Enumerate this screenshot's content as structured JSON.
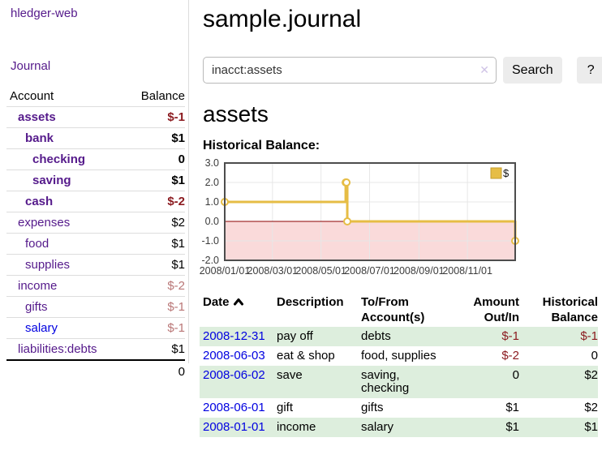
{
  "app": {
    "brand": "hledger-web",
    "nav_journal": "Journal"
  },
  "sidebar": {
    "header": {
      "account": "Account",
      "balance": "Balance"
    },
    "accounts": [
      {
        "name": "assets",
        "depth": 1,
        "bold": true,
        "balance": "$-1",
        "balance_style": "neg-strong"
      },
      {
        "name": "bank",
        "depth": 2,
        "bold": true,
        "balance": "$1",
        "balance_style": "pos"
      },
      {
        "name": "checking",
        "depth": 3,
        "bold": true,
        "balance": "0",
        "balance_style": "pos"
      },
      {
        "name": "saving",
        "depth": 3,
        "bold": true,
        "balance": "$1",
        "balance_style": "pos"
      },
      {
        "name": "cash",
        "depth": 2,
        "bold": true,
        "balance": "$-2",
        "balance_style": "neg-strong"
      },
      {
        "name": "expenses",
        "depth": 1,
        "bold": false,
        "balance": "$2",
        "balance_style": "pos"
      },
      {
        "name": "food",
        "depth": 2,
        "bold": false,
        "balance": "$1",
        "balance_style": "pos"
      },
      {
        "name": "supplies",
        "depth": 2,
        "bold": false,
        "balance": "$1",
        "balance_style": "pos"
      },
      {
        "name": "income",
        "depth": 1,
        "bold": false,
        "balance": "$-2",
        "balance_style": "neg-soft"
      },
      {
        "name": "gifts",
        "depth": 2,
        "bold": false,
        "balance": "$-1",
        "balance_style": "neg-soft"
      },
      {
        "name": "salary",
        "depth": 2,
        "bold": false,
        "balance": "$-1",
        "balance_style": "neg-soft",
        "link_color": "blue"
      },
      {
        "name": "liabilities:debts",
        "depth": 1,
        "bold": false,
        "balance": "$1",
        "balance_style": "pos"
      }
    ],
    "total": "0"
  },
  "main": {
    "title": "sample.journal",
    "search": {
      "value": "inacct:assets",
      "clear_icon": "✕",
      "button": "Search",
      "help": "?"
    },
    "account_heading": "assets",
    "chart_label": "Historical Balance:"
  },
  "chart_data": {
    "type": "line",
    "title": "Historical Balance:",
    "step": true,
    "series": [
      {
        "name": "$",
        "color": "#e6bd45",
        "points": [
          [
            "2008-01-01",
            1
          ],
          [
            "2008-06-01",
            2
          ],
          [
            "2008-06-02",
            2
          ],
          [
            "2008-06-03",
            0
          ],
          [
            "2008-12-31",
            -1
          ]
        ]
      }
    ],
    "xlim": [
      "2008/01/01",
      "2008/12/31"
    ],
    "ylim": [
      -2,
      3
    ],
    "x_ticks": [
      "2008/01/01",
      "2008/03/01",
      "2008/05/01",
      "2008/07/01",
      "2008/09/01",
      "2008/11/01"
    ],
    "y_ticks": [
      "3.0",
      "2.0",
      "1.0",
      "0.0",
      "-1.0",
      "-2.0"
    ],
    "grid": true,
    "legend": {
      "position": "top-right",
      "label": "$"
    },
    "negative_region_color": "#fadada",
    "zero_line_color": "#8b0000",
    "grid_color": "#e7e7e7",
    "border_color": "#4d4d4d"
  },
  "register": {
    "header": {
      "date": "Date",
      "sort_icon": "chevron-up",
      "description": "Description",
      "tofrom_line1": "To/From",
      "tofrom_line2": "Account(s)",
      "amount_line1": "Amount",
      "amount_line2": "Out/In",
      "hist_line1": "Historical",
      "hist_line2": "Balance"
    },
    "rows": [
      {
        "date": "2008-12-31",
        "description": "pay off",
        "accounts": "debts",
        "amount": "$-1",
        "balance": "$-1",
        "shaded": true
      },
      {
        "date": "2008-06-03",
        "description": "eat & shop",
        "accounts": "food, supplies",
        "amount": "$-2",
        "balance": "0",
        "shaded": false
      },
      {
        "date": "2008-06-02",
        "description": "save",
        "accounts": "saving, checking",
        "amount": "0",
        "balance": "$2",
        "shaded": true
      },
      {
        "date": "2008-06-01",
        "description": "gift",
        "accounts": "gifts",
        "amount": "$1",
        "balance": "$2",
        "shaded": false
      },
      {
        "date": "2008-01-01",
        "description": "income",
        "accounts": "salary",
        "amount": "$1",
        "balance": "$1",
        "shaded": true
      }
    ]
  },
  "colors": {
    "link_purple": "#551a8b",
    "link_blue": "#0000e0",
    "negative_strong": "#8b1a1f",
    "negative_soft": "#b97676",
    "row_green": "#ddeedd",
    "series_gold": "#e6bd45"
  }
}
